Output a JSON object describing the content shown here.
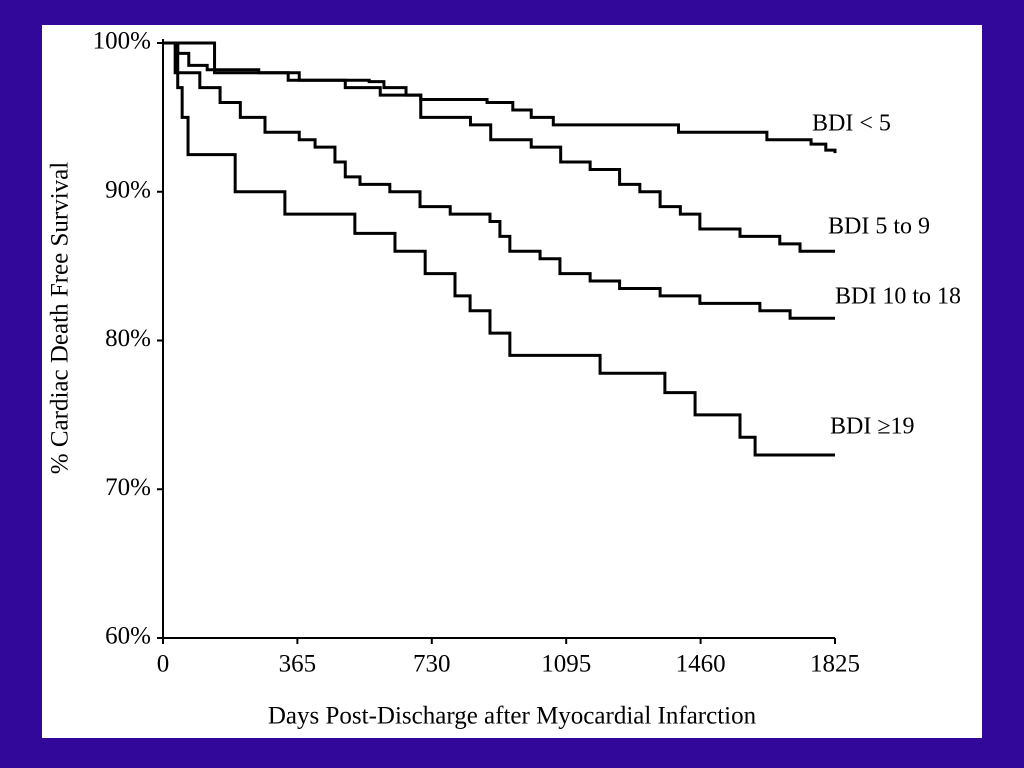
{
  "chart_data": {
    "type": "step",
    "xlabel": "Days Post-Discharge after Myocardial Infarction",
    "ylabel": "% Cardiac Death Free Survival",
    "xlim": [
      0,
      1825
    ],
    "xticks": [
      0,
      365,
      730,
      1095,
      1460,
      1825
    ],
    "ylim": [
      60,
      100
    ],
    "yticks": [
      {
        "value": 60,
        "label": "60%"
      },
      {
        "value": 70,
        "label": "70%"
      },
      {
        "value": 80,
        "label": "80%"
      },
      {
        "value": 90,
        "label": "90%"
      },
      {
        "value": 100,
        "label": "100%"
      }
    ],
    "series": [
      {
        "name": "BDI < 5",
        "color": "#000000",
        "x": [
          0,
          30,
          40,
          70,
          120,
          260,
          340,
          560,
          600,
          660,
          700,
          880,
          950,
          1000,
          1060,
          1400,
          1640,
          1760,
          1800,
          1825
        ],
        "values": [
          100,
          100,
          99.3,
          98.5,
          98.2,
          98,
          97.5,
          97.4,
          97,
          96.5,
          96.2,
          96,
          95.5,
          95,
          94.5,
          94,
          93.5,
          93.2,
          92.8,
          92.6
        ]
      },
      {
        "name": "BDI 5 to 9",
        "color": "#000000",
        "x": [
          0,
          114,
          140,
          370,
          495,
          590,
          700,
          835,
          890,
          1000,
          1080,
          1160,
          1240,
          1295,
          1350,
          1405,
          1458,
          1567,
          1675,
          1730,
          1825
        ],
        "values": [
          100,
          100,
          98,
          97.5,
          97,
          96.5,
          95,
          94.5,
          93.5,
          93,
          92,
          91.5,
          90.5,
          90,
          89,
          88.5,
          87.5,
          87,
          86.5,
          86,
          86
        ]
      },
      {
        "name": "BDI 10 to 18",
        "color": "#000000",
        "x": [
          0,
          33,
          100,
          155,
          210,
          277,
          370,
          413,
          467,
          495,
          535,
          616,
          698,
          780,
          888,
          915,
          942,
          1024,
          1078,
          1160,
          1240,
          1350,
          1458,
          1621,
          1703,
          1825
        ],
        "values": [
          100,
          98,
          97,
          96,
          95,
          94,
          93.5,
          93,
          92,
          91,
          90.5,
          90,
          89,
          88.5,
          88,
          87,
          86,
          85.5,
          84.5,
          84,
          83.5,
          83,
          82.5,
          82,
          81.5,
          81.5
        ]
      },
      {
        "name": "BDI ≥19",
        "color": "#000000",
        "x": [
          0,
          40,
          52,
          68,
          196,
          331,
          521,
          630,
          712,
          793,
          834,
          888,
          942,
          1187,
          1363,
          1445,
          1567,
          1573,
          1608,
          1825
        ],
        "values": [
          100,
          97,
          95,
          92.5,
          90,
          88.5,
          87.2,
          86,
          84.5,
          83,
          82,
          80.5,
          79,
          77.8,
          76.5,
          75,
          73.5,
          73.5,
          72.3,
          72.3
        ]
      }
    ]
  }
}
